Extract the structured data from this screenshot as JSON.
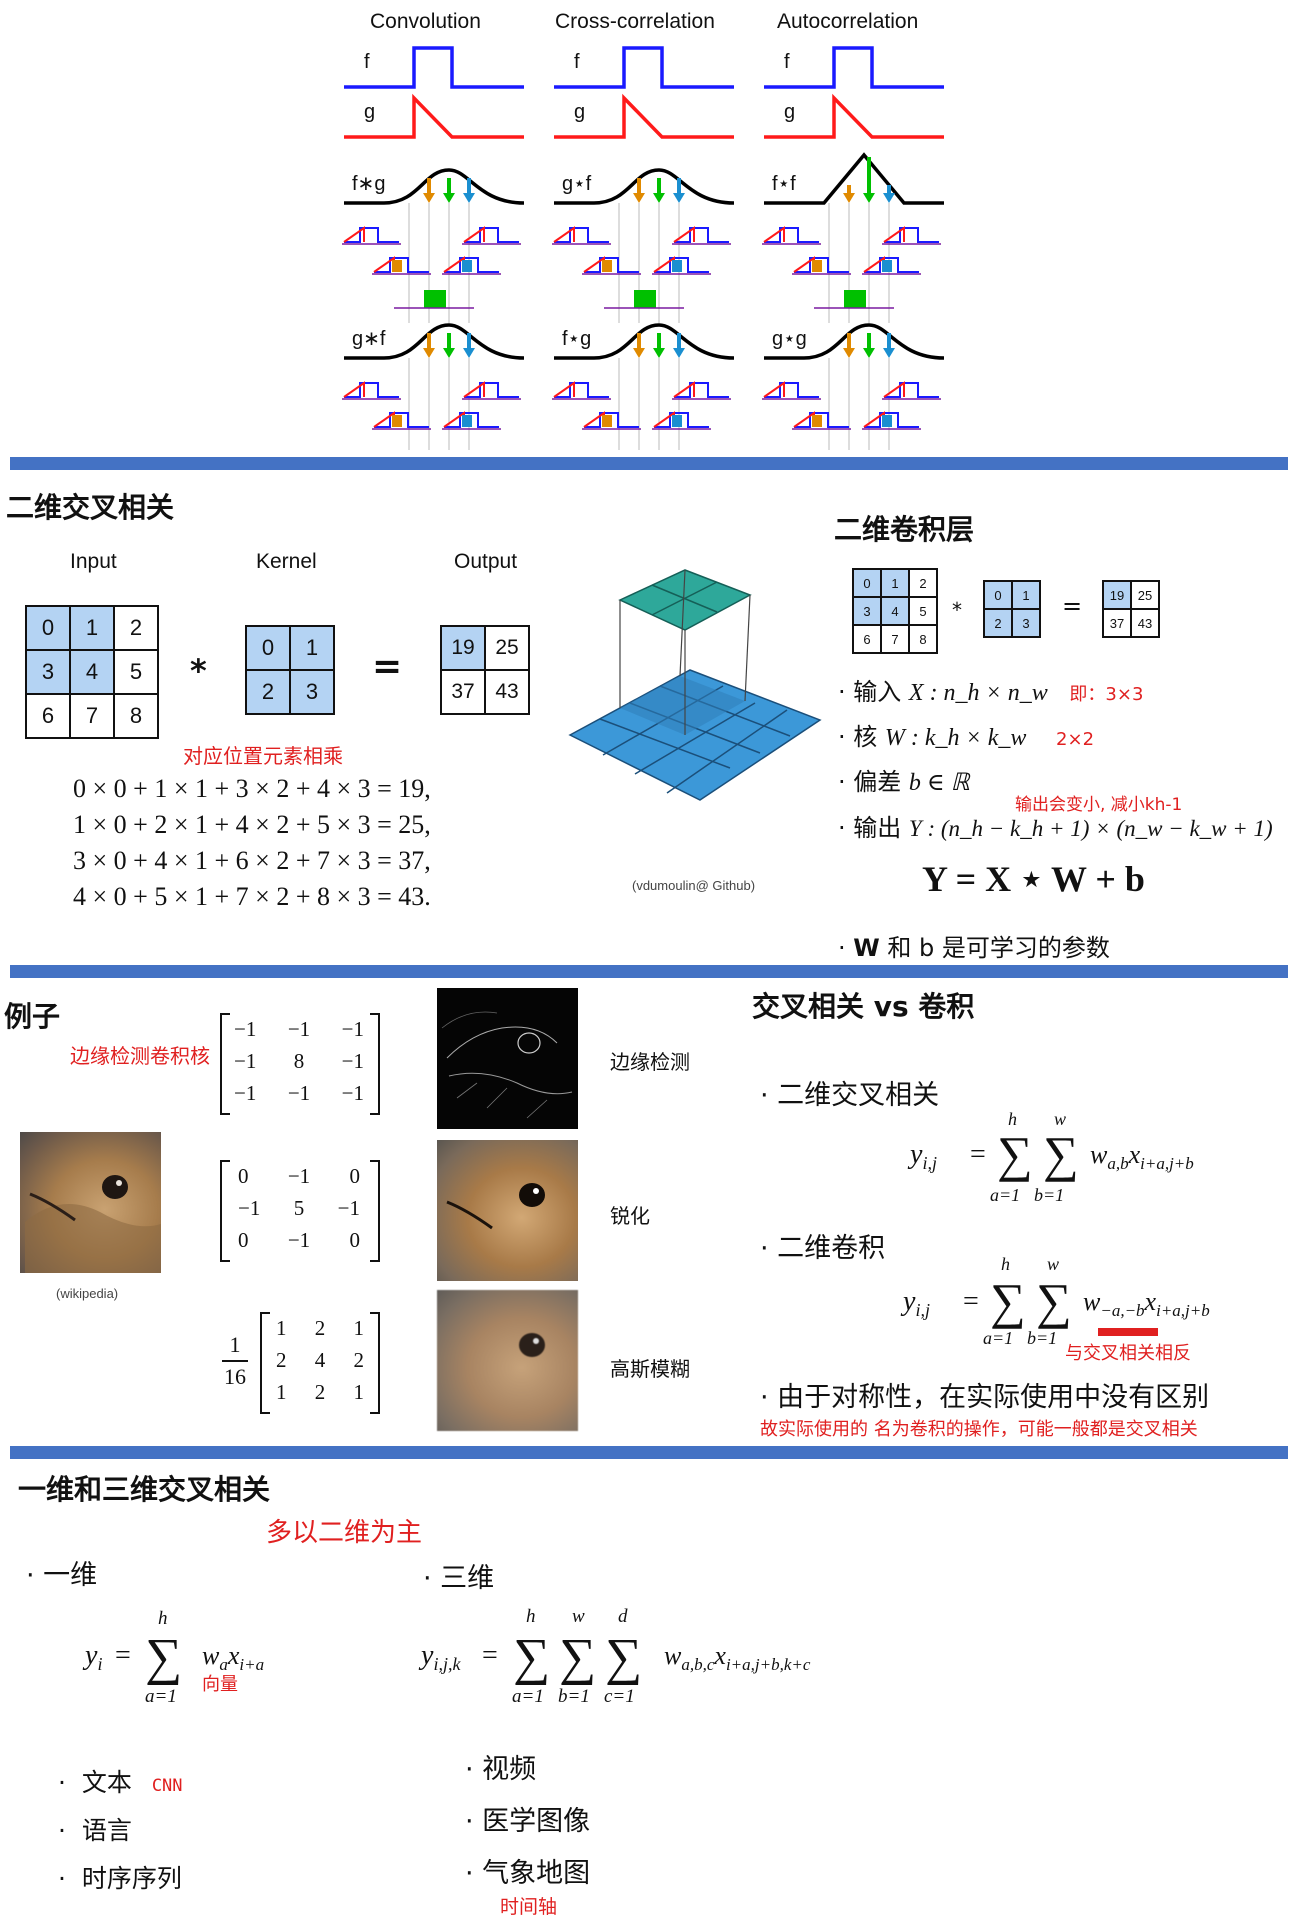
{
  "panel1": {
    "columns": [
      "Convolution",
      "Cross-correlation",
      "Autocorrelation"
    ],
    "f_label": "f",
    "g_label": "g",
    "row1_labels": [
      "f∗g",
      "g⋆f",
      "f⋆f"
    ],
    "row2_labels": [
      "g∗f",
      "f⋆g",
      "g⋆g"
    ],
    "colors": {
      "f": "#1a1aff",
      "g": "#ff1a1a",
      "result": "#000000",
      "orange": "#e08a00",
      "green": "#00c000",
      "blue": "#1a8fd0",
      "purple": "#7a1aa0"
    }
  },
  "panel2": {
    "title": "二维交叉相关",
    "input_label": "Input",
    "kernel_label": "Kernel",
    "output_label": "Output",
    "input": [
      "0",
      "1",
      "2",
      "3",
      "4",
      "5",
      "6",
      "7",
      "8"
    ],
    "kernel": [
      "0",
      "1",
      "2",
      "3"
    ],
    "output": [
      "19",
      "25",
      "37",
      "43"
    ],
    "star": "*",
    "equals": "=",
    "note": "对应位置元素相乘",
    "equations": [
      "0 × 0 + 1 × 1 + 3 × 2 + 4 × 3 = 19,",
      "1 × 0 + 2 × 1 + 4 × 2 + 5 × 3 = 25,",
      "3 × 0 + 4 × 1 + 6 × 2 + 7 × 3 = 37,",
      "4 × 0 + 5 × 1 + 7 × 2 + 8 × 3 = 43."
    ],
    "credit": "(vdumoulin@ Github)",
    "right_title": "二维卷积层",
    "b1_text": "输入",
    "b1_math": "X : n_h × n_w",
    "b1_note": "即：3×3",
    "b2_text": "核",
    "b2_math": "W : k_h × k_w",
    "b2_note": "2×2",
    "b3_text": "偏差",
    "b3_math": "b ∈ ℝ",
    "b4_note": "输出会变小, 减小kh-1",
    "b4_text": "输出",
    "b4_math": "Y : (n_h − k_h + 1) × (n_w − k_w + 1)",
    "formula": "Y = X ⋆ W + b",
    "b5_bold": "W",
    "b5_text": "和 b 是可学习的参数"
  },
  "panel3": {
    "title": "例子",
    "kernel_note": "边缘检测卷积核",
    "m1": [
      [
        "−1",
        "−1",
        "−1"
      ],
      [
        "−1",
        "8",
        "−1"
      ],
      [
        "−1",
        "−1",
        "−1"
      ]
    ],
    "m2": [
      [
        "0",
        "−1",
        "0"
      ],
      [
        "−1",
        "5",
        "−1"
      ],
      [
        "0",
        "−1",
        "0"
      ]
    ],
    "m3": [
      [
        "1",
        "2",
        "1"
      ],
      [
        "2",
        "4",
        "2"
      ],
      [
        "1",
        "2",
        "1"
      ]
    ],
    "m3_num": "1",
    "m3_den": "16",
    "credit": "(wikipedia)",
    "label1": "边缘检测",
    "label2": "锐化",
    "label3": "高斯模糊",
    "right_title": "交叉相关 vs 卷积",
    "b1": "二维交叉相关",
    "b2": "二维卷积",
    "b3": "由于对称性，在实际使用中没有区别",
    "under_note": "与交叉相关相反",
    "bottom_note": "故实际使用的 名为卷积的操作，可能一般都是交叉相关"
  },
  "panel4": {
    "title": "一维和三维交叉相关",
    "note": "多以二维为主",
    "b1": "一维",
    "b2": "三维",
    "vector_note": "向量",
    "left_items": [
      "文本",
      "语言",
      "时序序列"
    ],
    "cnn_note": "CNN",
    "right_items": [
      "视频",
      "医学图像",
      "气象地图"
    ],
    "time_note": "时间轴"
  }
}
